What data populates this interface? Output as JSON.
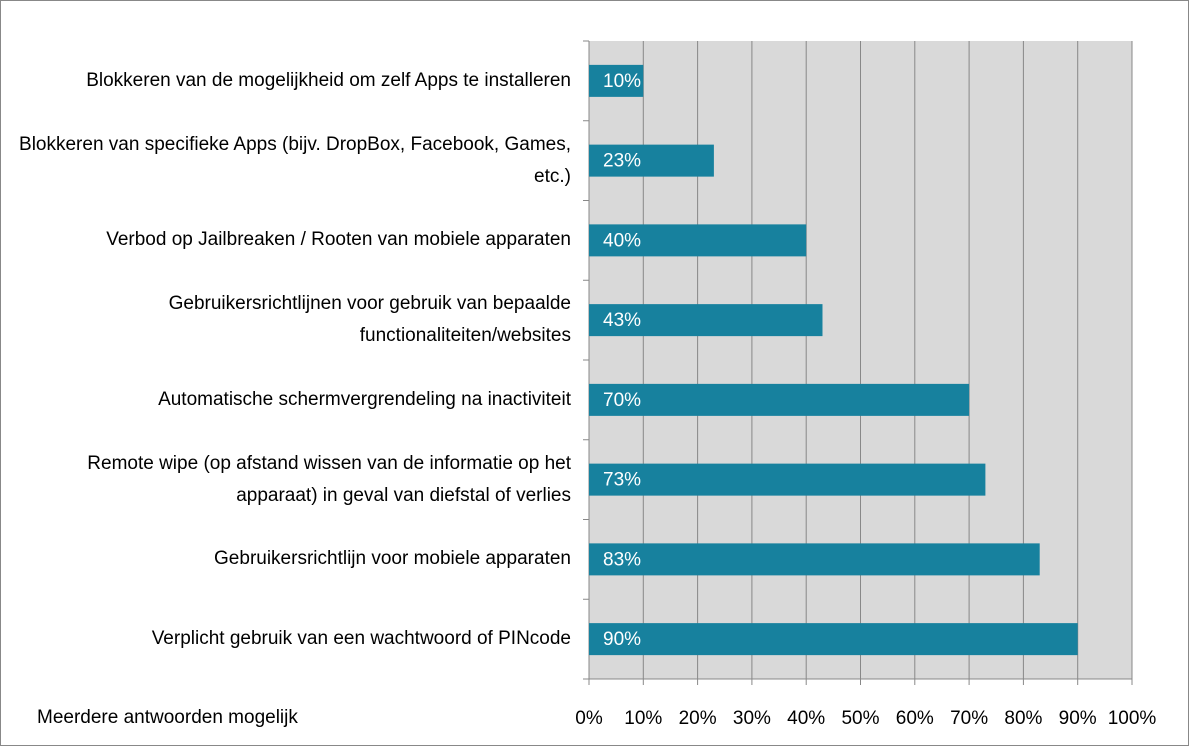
{
  "chart_data": {
    "type": "bar",
    "orientation": "horizontal",
    "categories": [
      "Blokkeren van de mogelijkheid om zelf Apps te installeren",
      "Blokkeren van specifieke Apps (bijv. DropBox, Facebook, Games, etc.)",
      "Verbod op Jailbreaken / Rooten van mobiele apparaten",
      "Gebruikersrichtlijnen voor gebruik van bepaalde functionaliteiten/websites",
      "Automatische schermvergrendeling na inactiviteit",
      "Remote wipe (op afstand wissen van de informatie op het apparaat) in geval van diefstal of verlies",
      "Gebruikersrichtlijn voor mobiele apparaten",
      "Verplicht gebruik van een wachtwoord of PINcode"
    ],
    "values": [
      10,
      23,
      40,
      43,
      70,
      73,
      83,
      90
    ],
    "value_labels": [
      "10%",
      "23%",
      "40%",
      "43%",
      "70%",
      "73%",
      "83%",
      "90%"
    ],
    "color": "#17819e",
    "xlim": [
      0,
      100
    ],
    "xticks": [
      {
        "value": 0,
        "label": "0%"
      },
      {
        "value": 10,
        "label": "10%"
      },
      {
        "value": 20,
        "label": "20%"
      },
      {
        "value": 30,
        "label": "30%"
      },
      {
        "value": 40,
        "label": "40%"
      },
      {
        "value": 50,
        "label": "50%"
      },
      {
        "value": 60,
        "label": "60%"
      },
      {
        "value": 70,
        "label": "70%"
      },
      {
        "value": 80,
        "label": "80%"
      },
      {
        "value": 90,
        "label": "90%"
      },
      {
        "value": 100,
        "label": "100%"
      }
    ],
    "grid": true,
    "annotation": "Meerdere antwoorden mogelijk"
  }
}
